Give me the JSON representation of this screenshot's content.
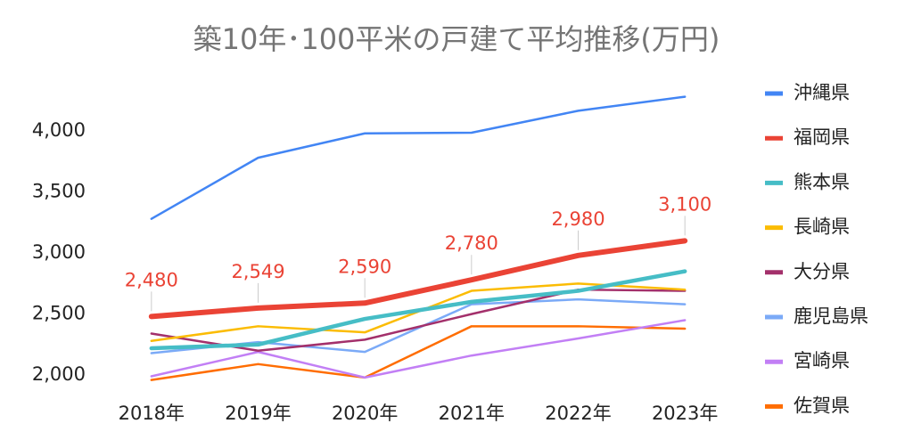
{
  "chart_data": {
    "type": "line",
    "title": "築10年･100平米の戸建て平均推移(万円)",
    "categories": [
      "2018年",
      "2019年",
      "2020年",
      "2021年",
      "2022年",
      "2023年"
    ],
    "ylim": [
      1950,
      4350
    ],
    "yticks": [
      {
        "value": 2000,
        "label": "2,000"
      },
      {
        "value": 2500,
        "label": "2,500"
      },
      {
        "value": 3000,
        "label": "3,000"
      },
      {
        "value": 3500,
        "label": "3,500"
      },
      {
        "value": 4000,
        "label": "4,000"
      }
    ],
    "grid": false,
    "legend": "right",
    "series": [
      {
        "name": "沖縄県",
        "color": "#4285f4",
        "linewidth": 2.5,
        "values": [
          3280,
          3780,
          3980,
          3985,
          4165,
          4280
        ]
      },
      {
        "name": "福岡県",
        "color": "#ea4335",
        "linewidth": 6,
        "values": [
          2480,
          2549,
          2590,
          2780,
          2980,
          3100
        ],
        "value_labels": [
          "2,480",
          "2,549",
          "2,590",
          "2,780",
          "2,980",
          "3,100"
        ]
      },
      {
        "name": "熊本県",
        "color": "#46bdc6",
        "linewidth": 4.5,
        "values": [
          2220,
          2250,
          2460,
          2600,
          2690,
          2850
        ]
      },
      {
        "name": "長崎県",
        "color": "#fbbc04",
        "linewidth": 2.5,
        "values": [
          2280,
          2400,
          2350,
          2690,
          2750,
          2700
        ]
      },
      {
        "name": "大分県",
        "color": "#a3306b",
        "linewidth": 2.5,
        "values": [
          2340,
          2200,
          2290,
          2500,
          2700,
          2690
        ]
      },
      {
        "name": "鹿児島県",
        "color": "#7baaf7",
        "linewidth": 2.5,
        "values": [
          2180,
          2270,
          2190,
          2580,
          2620,
          2580
        ]
      },
      {
        "name": "宮崎県",
        "color": "#c27ff5",
        "linewidth": 2.5,
        "values": [
          1990,
          2190,
          1980,
          2160,
          2300,
          2450
        ]
      },
      {
        "name": "佐賀県",
        "color": "#ff6d01",
        "linewidth": 2.5,
        "values": [
          1960,
          2090,
          1980,
          2400,
          2400,
          2380
        ]
      }
    ]
  }
}
